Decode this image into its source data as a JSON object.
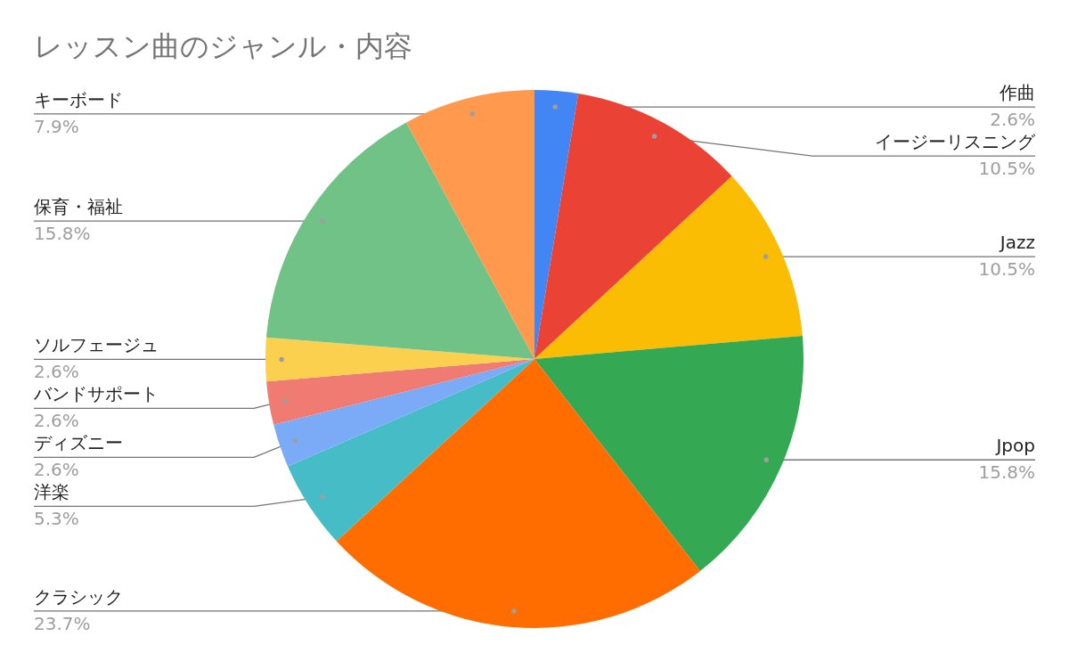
{
  "chart_data": {
    "type": "pie",
    "title": "レッスン曲のジャンル・内容",
    "categories": [
      "作曲",
      "イージーリスニング",
      "Jazz",
      "Jpop",
      "クラシック",
      "洋楽",
      "ディズニー",
      "バンドサポート",
      "ソルフェージュ",
      "保育・福祉",
      "キーボード"
    ],
    "values": [
      2.6,
      10.5,
      10.5,
      15.8,
      23.7,
      5.3,
      2.6,
      2.6,
      2.6,
      15.8,
      7.9
    ],
    "colors": [
      "#4285f4",
      "#ea4335",
      "#fbbc04",
      "#34a853",
      "#ff6d01",
      "#46bdc6",
      "#7baaf7",
      "#f07b72",
      "#fcd04f",
      "#71c287",
      "#ff994d"
    ],
    "value_labels": [
      "2.6%",
      "10.5%",
      "10.5%",
      "15.8%",
      "23.7%",
      "5.3%",
      "2.6%",
      "2.6%",
      "2.6%",
      "15.8%",
      "7.9%"
    ]
  }
}
